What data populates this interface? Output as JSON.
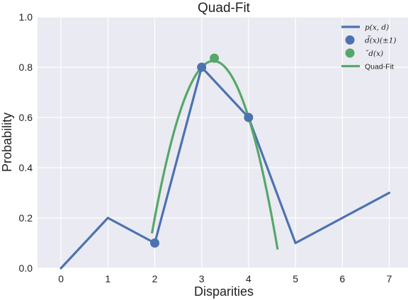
{
  "chart_data": {
    "type": "line",
    "title": "Quad-Fit",
    "xlabel": "Disparities",
    "ylabel": "Probability",
    "xlim": [
      -0.5,
      7.4
    ],
    "ylim": [
      0.0,
      1.0
    ],
    "x_ticks": [
      0,
      1,
      2,
      3,
      4,
      5,
      6,
      7
    ],
    "x_tick_labels": [
      "0",
      "1",
      "2",
      "3",
      "4",
      "5",
      "6",
      "7"
    ],
    "y_ticks": [
      0.0,
      0.2,
      0.4,
      0.6,
      0.8,
      1.0
    ],
    "y_tick_labels": [
      "0.0",
      "0.2",
      "0.4",
      "0.6",
      "0.8",
      "1.0"
    ],
    "grid": true,
    "legend_position": "top-right",
    "series": [
      {
        "name": "p(x, d)",
        "kind": "line",
        "color": "#4c72b0",
        "x": [
          0,
          1,
          2,
          3,
          4,
          5,
          6,
          7
        ],
        "y": [
          0.0,
          0.2,
          0.1,
          0.8,
          0.6,
          0.1,
          0.2,
          0.3
        ]
      },
      {
        "name": "d̃(x)(±1)",
        "kind": "scatter",
        "color": "#4c72b0",
        "x": [
          2,
          3,
          4
        ],
        "y": [
          0.1,
          0.8,
          0.6
        ]
      },
      {
        "name": "ˇd(x)",
        "kind": "scatter",
        "color": "#55a868",
        "x": [
          3.27
        ],
        "y": [
          0.836
        ]
      },
      {
        "name": "Quad-Fit",
        "kind": "curve",
        "color": "#55a868",
        "quadratic": {
          "a": -0.4,
          "b": 2.6,
          "c": -3.4
        },
        "x_range": [
          1.94,
          4.62
        ]
      }
    ],
    "legend": [
      {
        "label": "p(x, d)",
        "marker": "line",
        "color": "#4c72b0",
        "italic": true
      },
      {
        "label": "d̃(x)(±1)",
        "marker": "dot",
        "color": "#4c72b0",
        "italic": true
      },
      {
        "label": "ˇd(x)",
        "marker": "dot",
        "color": "#55a868",
        "italic": true
      },
      {
        "label": "Quad-Fit",
        "marker": "line",
        "color": "#55a868",
        "italic": false
      }
    ],
    "colors": {
      "plot_background": "#eaeaf2",
      "grid": "#ffffff"
    }
  }
}
